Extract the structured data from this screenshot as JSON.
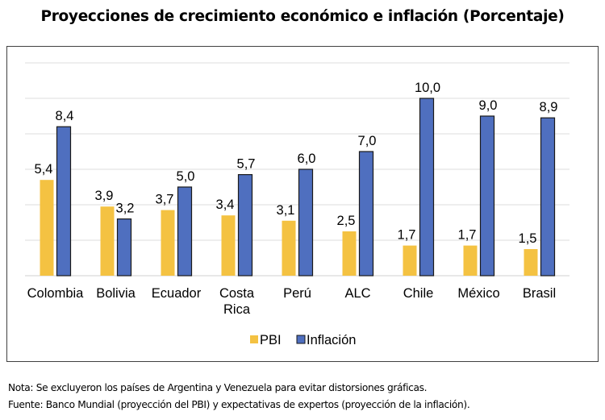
{
  "title": "Proyecciones de crecimiento económico e inflación (Porcentaje)",
  "notes": {
    "nota": "Nota: Se excluyeron los países de Argentina y Venezuela para evitar distorsiones gráficas.",
    "fuente": "Fuente: Banco Mundial (proyección del PBI) y expectativas de expertos (proyección de la inflación)."
  },
  "chart_data": {
    "type": "bar",
    "title": "Proyecciones de crecimiento económico e inflación (Porcentaje)",
    "xlabel": "",
    "ylabel": "",
    "ylim": [
      0,
      12
    ],
    "grid": true,
    "y_axis_visible": false,
    "legend_position": "bottom",
    "categories": [
      "Colombia",
      "Bolivia",
      "Ecuador",
      "Costa Rica",
      "Perú",
      "ALC",
      "Chile",
      "México",
      "Brasil"
    ],
    "category_lines": [
      [
        "Colombia"
      ],
      [
        "Bolivia"
      ],
      [
        "Ecuador"
      ],
      [
        "Costa",
        "Rica"
      ],
      [
        "Perú"
      ],
      [
        "ALC"
      ],
      [
        "Chile"
      ],
      [
        "México"
      ],
      [
        "Brasil"
      ]
    ],
    "series": [
      {
        "name": "PBI",
        "color": "#F4C242",
        "values": [
          5.4,
          3.9,
          3.7,
          3.4,
          3.1,
          2.5,
          1.7,
          1.7,
          1.5
        ],
        "labels": [
          "5,4",
          "3,9",
          "3,7",
          "3,4",
          "3,1",
          "2,5",
          "1,7",
          "1,7",
          "1,5"
        ]
      },
      {
        "name": "Inflación",
        "color": "#4F6FBF",
        "values": [
          8.4,
          3.2,
          5.0,
          5.7,
          6.0,
          7.0,
          10.0,
          9.0,
          8.9
        ],
        "labels": [
          "8,4",
          "3,2",
          "5,0",
          "5,7",
          "6,0",
          "7,0",
          "10,0",
          "9,0",
          "8,9"
        ]
      }
    ]
  }
}
